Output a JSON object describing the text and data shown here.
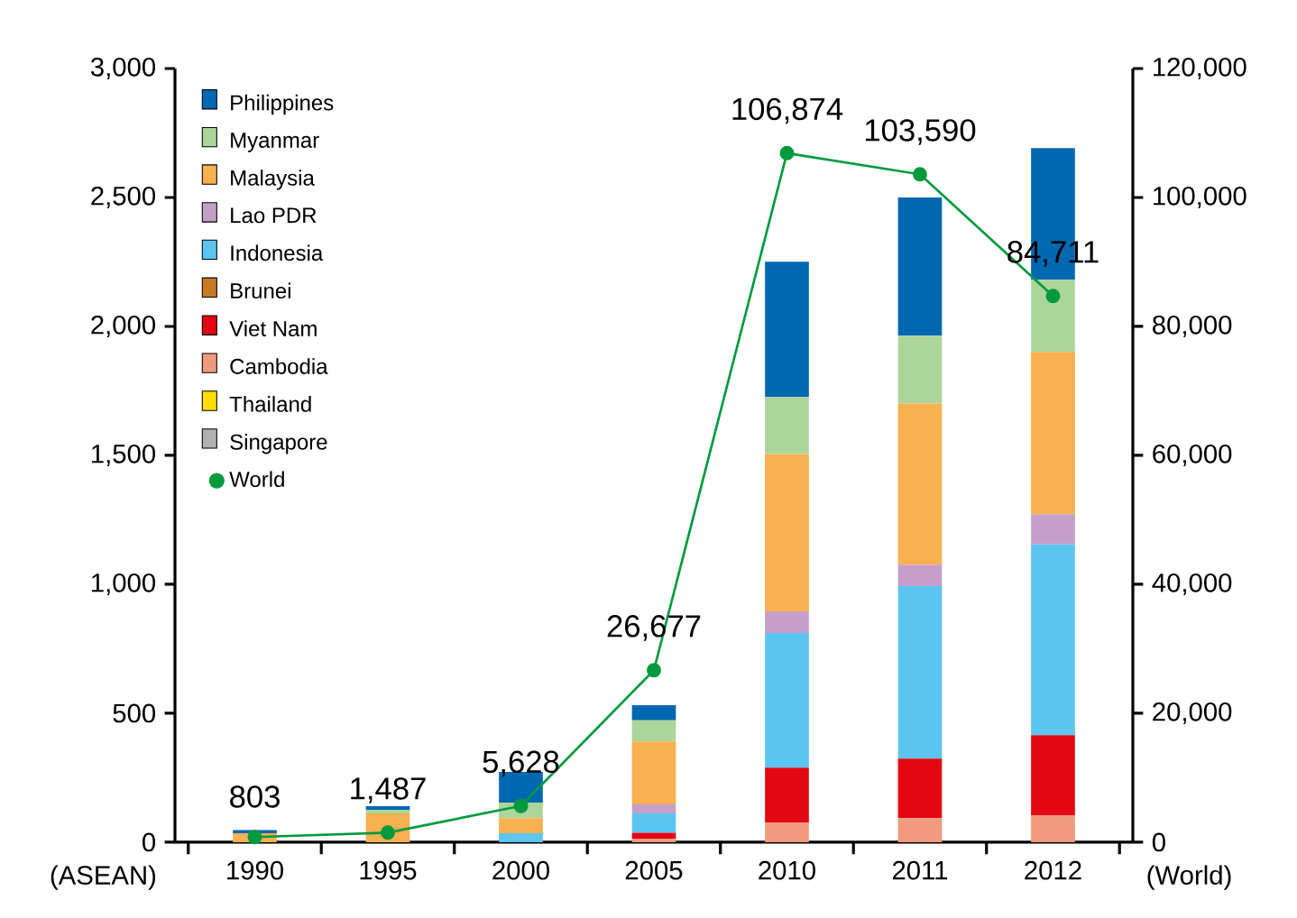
{
  "chart_data": {
    "type": "bar",
    "stacked": true,
    "categories": [
      "1990",
      "1995",
      "2000",
      "2005",
      "2010",
      "2011",
      "2012"
    ],
    "ylabel": "(ASEAN)",
    "y2label": "(World)",
    "ylim": [
      0,
      3000
    ],
    "yticks": [
      0,
      {
        "value": 500,
        "label": "500"
      },
      {
        "value": 1000,
        "label": "1,000"
      },
      {
        "value": 1500,
        "label": "1,500"
      },
      {
        "value": 2000,
        "label": "2,000"
      },
      {
        "value": 2500,
        "label": "2,500"
      },
      {
        "value": 3000,
        "label": "3,000"
      }
    ],
    "y2lim": [
      0,
      120000
    ],
    "y2ticks": [
      0,
      {
        "value": 20000,
        "label": "20,000"
      },
      {
        "value": 40000,
        "label": "40,000"
      },
      {
        "value": 60000,
        "label": "60,000"
      },
      {
        "value": 80000,
        "label": "80,000"
      },
      {
        "value": 100000,
        "label": "100,000"
      },
      {
        "value": 120000,
        "label": "120,000"
      }
    ],
    "grid": false,
    "legend": "top left",
    "series": [
      {
        "name": "Singapore",
        "color": "#b2b2b2",
        "values": [
          0,
          0,
          0,
          0,
          0,
          0,
          0
        ]
      },
      {
        "name": "Thailand",
        "color": "#ffdd00",
        "values": [
          0,
          0,
          0,
          0,
          0,
          0,
          0
        ]
      },
      {
        "name": "Cambodia",
        "color": "#f29a7d",
        "values": [
          0,
          0,
          0,
          14,
          77,
          93,
          105
        ]
      },
      {
        "name": "Viet Nam",
        "color": "#e30613",
        "values": [
          0,
          0,
          0,
          23,
          212,
          231,
          310
        ]
      },
      {
        "name": "Brunei",
        "color": "#c77b23",
        "values": [
          0,
          0,
          0,
          0,
          0,
          0,
          0
        ]
      },
      {
        "name": "Indonesia",
        "color": "#5bc5f2",
        "values": [
          0,
          0,
          35,
          75,
          522,
          669,
          740
        ]
      },
      {
        "name": "Lao PDR",
        "color": "#c59fca",
        "values": [
          0,
          0,
          0,
          35,
          84,
          83,
          117
        ]
      },
      {
        "name": "Malaysia",
        "color": "#f8b050",
        "values": [
          35,
          112,
          58,
          244,
          610,
          625,
          629
        ]
      },
      {
        "name": "Myanmar",
        "color": "#acd59c",
        "values": [
          0,
          14,
          61,
          82,
          221,
          263,
          280
        ]
      },
      {
        "name": "Philippines",
        "color": "#0067b1",
        "values": [
          12,
          14,
          119,
          58,
          525,
          536,
          510
        ]
      },
      {
        "name": "World",
        "type": "line",
        "axis": "y2",
        "marker": "circle",
        "color": "#009a3e",
        "values": [
          803,
          1487,
          5628,
          26677,
          106874,
          103590,
          84711
        ],
        "value_labels": [
          "803",
          "1,487",
          "5,628",
          "26,677",
          "106,874",
          "103,590",
          "84,711"
        ]
      }
    ]
  }
}
